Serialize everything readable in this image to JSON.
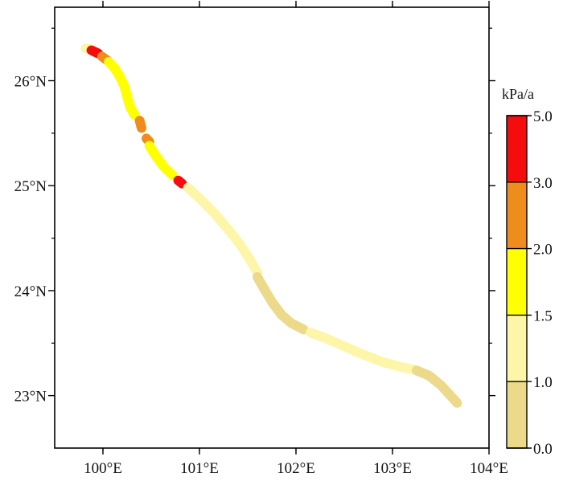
{
  "map": {
    "lon_range": [
      99.5,
      104.0
    ],
    "lat_range": [
      22.5,
      26.7
    ],
    "x_ticks": [
      {
        "value": 100,
        "label": "100°E"
      },
      {
        "value": 101,
        "label": "101°E"
      },
      {
        "value": 102,
        "label": "102°E"
      },
      {
        "value": 103,
        "label": "103°E"
      },
      {
        "value": 104,
        "label": "104°E"
      }
    ],
    "y_ticks": [
      {
        "value": 23,
        "label": "23°N"
      },
      {
        "value": 24,
        "label": "24°N"
      },
      {
        "value": 25,
        "label": "25°N"
      },
      {
        "value": 26,
        "label": "26°N"
      }
    ],
    "track_segments": [
      {
        "cls": 1,
        "points": [
          [
            99.82,
            26.31
          ],
          [
            99.88,
            26.3
          ]
        ]
      },
      {
        "cls": 4,
        "points": [
          [
            99.88,
            26.29
          ],
          [
            99.95,
            26.26
          ]
        ]
      },
      {
        "cls": 3,
        "points": [
          [
            99.99,
            26.23
          ],
          [
            100.05,
            26.19
          ]
        ]
      },
      {
        "cls": 2,
        "points": [
          [
            100.06,
            26.18
          ],
          [
            100.12,
            26.12
          ],
          [
            100.18,
            26.03
          ],
          [
            100.22,
            25.95
          ],
          [
            100.25,
            25.85
          ],
          [
            100.28,
            25.75
          ],
          [
            100.33,
            25.67
          ]
        ]
      },
      {
        "cls": 3,
        "points": [
          [
            100.38,
            25.62
          ],
          [
            100.4,
            25.55
          ]
        ]
      },
      {
        "cls": 3,
        "points": [
          [
            100.45,
            25.45
          ],
          [
            100.48,
            25.42
          ]
        ]
      },
      {
        "cls": 2,
        "points": [
          [
            100.48,
            25.38
          ],
          [
            100.55,
            25.28
          ],
          [
            100.63,
            25.18
          ],
          [
            100.72,
            25.1
          ]
        ]
      },
      {
        "cls": 4,
        "points": [
          [
            100.78,
            25.05
          ],
          [
            100.82,
            25.02
          ]
        ]
      },
      {
        "cls": 1,
        "points": [
          [
            100.88,
            24.98
          ],
          [
            101.0,
            24.88
          ],
          [
            101.15,
            24.74
          ],
          [
            101.3,
            24.58
          ],
          [
            101.42,
            24.44
          ],
          [
            101.52,
            24.3
          ],
          [
            101.6,
            24.17
          ]
        ]
      },
      {
        "cls": 0,
        "points": [
          [
            101.6,
            24.13
          ],
          [
            101.68,
            24.0
          ],
          [
            101.76,
            23.88
          ],
          [
            101.85,
            23.77
          ],
          [
            101.95,
            23.69
          ],
          [
            102.08,
            23.63
          ]
        ]
      },
      {
        "cls": 1,
        "points": [
          [
            102.15,
            23.6
          ],
          [
            102.3,
            23.55
          ],
          [
            102.5,
            23.47
          ],
          [
            102.7,
            23.39
          ],
          [
            102.9,
            23.32
          ],
          [
            103.1,
            23.27
          ],
          [
            103.22,
            23.25
          ]
        ]
      },
      {
        "cls": 0,
        "points": [
          [
            103.25,
            23.24
          ],
          [
            103.38,
            23.19
          ],
          [
            103.5,
            23.1
          ],
          [
            103.6,
            23.0
          ],
          [
            103.67,
            22.93
          ]
        ]
      }
    ]
  },
  "colorbar": {
    "title": "kPa/a",
    "tick_labels": [
      "0.0",
      "1.0",
      "1.5",
      "2.0",
      "3.0",
      "5.0"
    ],
    "bins": [
      {
        "label": "0.0–1.0",
        "color": "#ecd98a"
      },
      {
        "label": "1.0–1.5",
        "color": "#fdf6a8"
      },
      {
        "label": "1.5–2.0",
        "color": "#ffff00"
      },
      {
        "label": "2.0–3.0",
        "color": "#ef8d1c"
      },
      {
        "label": "3.0–5.0",
        "color": "#f50c0c"
      }
    ]
  }
}
